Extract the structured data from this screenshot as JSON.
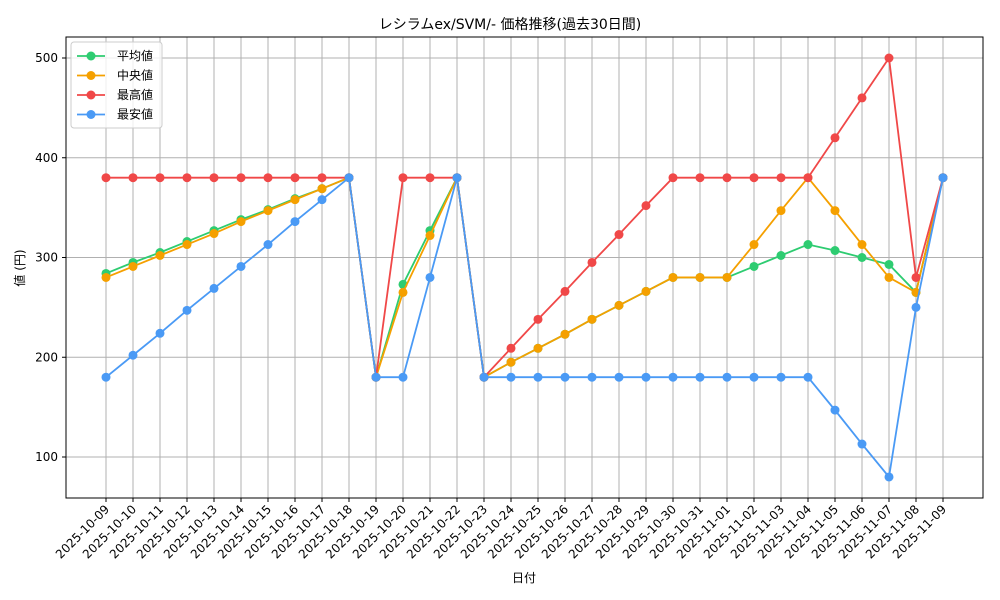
{
  "chart_data": {
    "type": "line",
    "title": "レシラムex/SVM/- 価格推移(過去30日間)",
    "xlabel": "日付",
    "ylabel": "値 (円)",
    "ylim": [
      60,
      522
    ],
    "yticks": [
      100,
      200,
      300,
      400,
      500
    ],
    "grid": true,
    "legend_position": "upper left",
    "x": [
      "2025-10-09",
      "2025-10-10",
      "2025-10-11",
      "2025-10-12",
      "2025-10-13",
      "2025-10-14",
      "2025-10-15",
      "2025-10-16",
      "2025-10-17",
      "2025-10-18",
      "2025-10-19",
      "2025-10-20",
      "2025-10-21",
      "2025-10-22",
      "2025-10-23",
      "2025-10-24",
      "2025-10-25",
      "2025-10-26",
      "2025-10-27",
      "2025-10-28",
      "2025-10-29",
      "2025-10-30",
      "2025-10-31",
      "2025-11-01",
      "2025-11-02",
      "2025-11-03",
      "2025-11-04",
      "2025-11-05",
      "2025-11-06",
      "2025-11-07",
      "2025-11-08",
      "2025-11-09"
    ],
    "series": [
      {
        "name": "平均値",
        "color": "#2ecc71",
        "values": [
          284,
          295,
          305,
          316,
          327,
          338,
          348,
          359,
          369,
          380,
          180,
          273,
          327,
          380,
          180,
          195,
          209,
          223,
          238,
          252,
          266,
          280,
          280,
          280,
          291,
          302,
          313,
          307,
          300,
          293,
          265,
          380
        ]
      },
      {
        "name": "中央値",
        "color": "#f5a000",
        "values": [
          280,
          291,
          302,
          313,
          324,
          336,
          347,
          358,
          369,
          380,
          180,
          265,
          322,
          380,
          180,
          195,
          209,
          223,
          238,
          252,
          266,
          280,
          280,
          280,
          313,
          347,
          380,
          347,
          313,
          280,
          265,
          380
        ]
      },
      {
        "name": "最高値",
        "color": "#f04848",
        "values": [
          380,
          380,
          380,
          380,
          380,
          380,
          380,
          380,
          380,
          380,
          180,
          380,
          380,
          380,
          180,
          209,
          238,
          266,
          295,
          323,
          352,
          380,
          380,
          380,
          380,
          380,
          380,
          420,
          460,
          500,
          280,
          380
        ]
      },
      {
        "name": "最安値",
        "color": "#4a9af5",
        "values": [
          180,
          202,
          224,
          247,
          269,
          291,
          313,
          336,
          358,
          380,
          180,
          180,
          280,
          380,
          180,
          180,
          180,
          180,
          180,
          180,
          180,
          180,
          180,
          180,
          180,
          180,
          180,
          147,
          113,
          80,
          250,
          380
        ]
      }
    ]
  }
}
